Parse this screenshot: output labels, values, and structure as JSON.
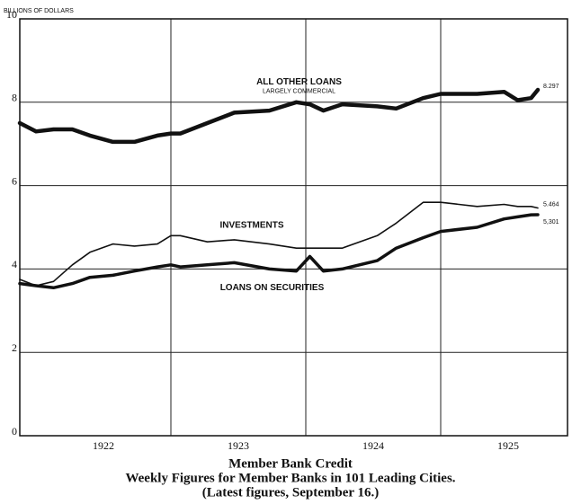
{
  "chart_data": {
    "type": "line",
    "title": "Member Bank Credit",
    "subtitle": "Weekly Figures for Member Banks in 101 Leading Cities.",
    "note": "(Latest figures, September 16.)",
    "y_label": "BILLIONS OF DOLLARS",
    "xlim": [
      1921.88,
      1925.94
    ],
    "ylim": [
      0,
      10
    ],
    "yticks": [
      0,
      2,
      4,
      6,
      8,
      10
    ],
    "xticks": [
      {
        "value": 1922.5,
        "label": "1922"
      },
      {
        "value": 1923.5,
        "label": "1923"
      },
      {
        "value": 1924.5,
        "label": "1924"
      },
      {
        "value": 1925.5,
        "label": "1925"
      }
    ],
    "xgrid": [
      1923,
      1924,
      1925
    ],
    "grid": true,
    "x": [
      1921.88,
      1922.0,
      1922.13,
      1922.27,
      1922.4,
      1922.57,
      1922.73,
      1922.9,
      1923.0,
      1923.07,
      1923.27,
      1923.47,
      1923.73,
      1923.93,
      1924.03,
      1924.13,
      1924.27,
      1924.53,
      1924.67,
      1924.87,
      1925.0,
      1925.27,
      1925.47,
      1925.57,
      1925.67,
      1925.72
    ],
    "series": [
      {
        "name": "ALL OTHER LOANS",
        "note": "LARGELY COMMERCIAL",
        "end_label": "8.297",
        "color": "#111111",
        "width": 4.5,
        "values": [
          7.5,
          7.3,
          7.35,
          7.35,
          7.2,
          7.05,
          7.05,
          7.2,
          7.25,
          7.25,
          7.5,
          7.75,
          7.8,
          8.0,
          7.95,
          7.8,
          7.95,
          7.9,
          7.85,
          8.1,
          8.2,
          8.2,
          8.25,
          8.05,
          8.1,
          8.297
        ]
      },
      {
        "name": "INVESTMENTS",
        "end_label": "5.464",
        "color": "#111111",
        "width": 1.6,
        "values": [
          3.75,
          3.6,
          3.7,
          4.1,
          4.4,
          4.6,
          4.55,
          4.6,
          4.8,
          4.8,
          4.65,
          4.7,
          4.6,
          4.5,
          4.5,
          4.5,
          4.5,
          4.8,
          5.1,
          5.6,
          5.6,
          5.5,
          5.55,
          5.5,
          5.5,
          5.464
        ]
      },
      {
        "name": "LOANS ON SECURITIES",
        "end_label": "5,301",
        "color": "#111111",
        "width": 3.5,
        "values": [
          3.65,
          3.6,
          3.55,
          3.65,
          3.8,
          3.85,
          3.95,
          4.05,
          4.1,
          4.05,
          4.1,
          4.15,
          4.0,
          3.95,
          4.3,
          3.95,
          4.0,
          4.2,
          4.5,
          4.75,
          4.9,
          5.0,
          5.2,
          5.25,
          5.3,
          5.301
        ]
      }
    ]
  }
}
